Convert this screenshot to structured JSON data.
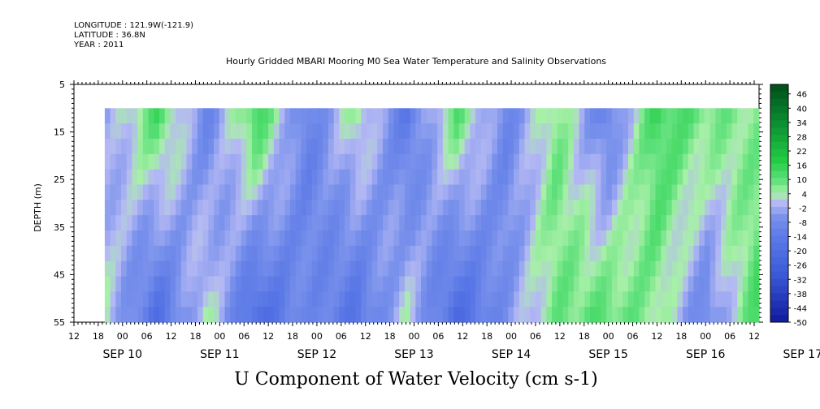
{
  "header": {
    "longitude": "LONGITUDE : 121.9W(-121.9)",
    "latitude": "LATITUDE : 36.8N",
    "year": "YEAR : 2011"
  },
  "chart_data": {
    "type": "heatmap",
    "title": "Hourly Gridded MBARI Mooring M0 Sea Water Temperature and Salinity Observations",
    "bottom_title": "U Component of Water Velocity (cm s-1)",
    "ylabel": "DEPTH (m)",
    "ylim": [
      5,
      55
    ],
    "y_inverted": true,
    "y_ticks": [
      5,
      15,
      25,
      35,
      45,
      55
    ],
    "data_depth_range": [
      10,
      55
    ],
    "x_hour_ticks": [
      "12",
      "18",
      "00",
      "06",
      "12",
      "18",
      "00",
      "06",
      "12",
      "18",
      "00",
      "06",
      "12",
      "18",
      "00",
      "06",
      "12",
      "18",
      "00",
      "06",
      "12",
      "18",
      "00",
      "06",
      "12",
      "18",
      "00",
      "06",
      "12"
    ],
    "x_day_labels": [
      "SEP 10",
      "SEP 11",
      "SEP 12",
      "SEP 13",
      "SEP 14",
      "SEP 15",
      "SEP 16",
      "SEP 17"
    ],
    "colorbar": {
      "labels": [
        "46",
        "40",
        "34",
        "28",
        "22",
        "16",
        "10",
        "4",
        "-2",
        "-8",
        "-14",
        "-20",
        "-26",
        "-32",
        "-38",
        "-44",
        "-50"
      ],
      "range": [
        -50,
        50
      ],
      "colors": {
        "dark_green": "#004d1a",
        "green": "#22cc44",
        "light_green": "#a8f0a8",
        "lavender": "#b4b8f4",
        "blue": "#5a78e6",
        "dark_blue": "#101a9c"
      }
    },
    "columns_u": [
      {
        "time": "SEP 10 18",
        "surface_u": -4,
        "bottom_u": 2
      },
      {
        "time": "SEP 11 06",
        "surface_u": 12,
        "bottom_u": -18
      },
      {
        "time": "SEP 11 18",
        "surface_u": -10,
        "bottom_u": 4
      },
      {
        "time": "SEP 12 06",
        "surface_u": 14,
        "bottom_u": -20
      },
      {
        "time": "SEP 12 18",
        "surface_u": -12,
        "bottom_u": -8
      },
      {
        "time": "SEP 13 06",
        "surface_u": 6,
        "bottom_u": -16
      },
      {
        "time": "SEP 13 18",
        "surface_u": -14,
        "bottom_u": 2
      },
      {
        "time": "SEP 14 06",
        "surface_u": 10,
        "bottom_u": -20
      },
      {
        "time": "SEP 14 18",
        "surface_u": -10,
        "bottom_u": -6
      },
      {
        "time": "SEP 15 06",
        "surface_u": 8,
        "bottom_u": 8
      },
      {
        "time": "SEP 15 18",
        "surface_u": -12,
        "bottom_u": 10
      },
      {
        "time": "SEP 16 06",
        "surface_u": 14,
        "bottom_u": 6
      },
      {
        "time": "SEP 16 18",
        "surface_u": 8,
        "bottom_u": -10
      },
      {
        "time": "SEP 17 06",
        "surface_u": 6,
        "bottom_u": 12
      }
    ]
  }
}
